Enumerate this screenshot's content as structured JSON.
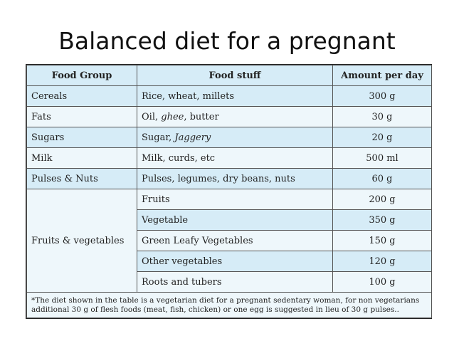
{
  "title": "Balanced diet for a pregnant",
  "table": {
    "headers": [
      "Food Group",
      "Food stuff",
      "Amount per day"
    ],
    "rows": [
      {
        "group": "Cereals",
        "food": "Rice, wheat, millets",
        "amount": "300 g"
      },
      {
        "group": "Fats",
        "food_parts": [
          "Oil, ",
          "ghee",
          ", butter"
        ],
        "amount": "30 g"
      },
      {
        "group": "Sugars",
        "food_parts": [
          "Sugar, ",
          "Jaggery"
        ],
        "amount": "20 g"
      },
      {
        "group": "Milk",
        "food": "Milk, curds, etc",
        "amount": "500 ml"
      },
      {
        "group": "Pulses & Nuts",
        "food": "Pulses, legumes, dry beans, nuts",
        "amount": "60 g"
      }
    ],
    "fruits_group": "Fruits & vegetables",
    "fruits_rows": [
      {
        "food": "Fruits",
        "amount": "200 g"
      },
      {
        "food": "Vegetable",
        "amount": "350 g"
      },
      {
        "food": "Green Leafy Vegetables",
        "amount": "150 g"
      },
      {
        "food": "Other vegetables",
        "amount": "120 g"
      },
      {
        "food": "Roots and tubers",
        "amount": "100 g"
      }
    ],
    "footnote": "*The diet shown in the table is a vegetarian diet for a pregnant sedentary woman, for non vegetarians additional 30 g of flesh foods (meat, fish, chicken) or one egg is suggested in lieu of 30 g pulses.."
  }
}
